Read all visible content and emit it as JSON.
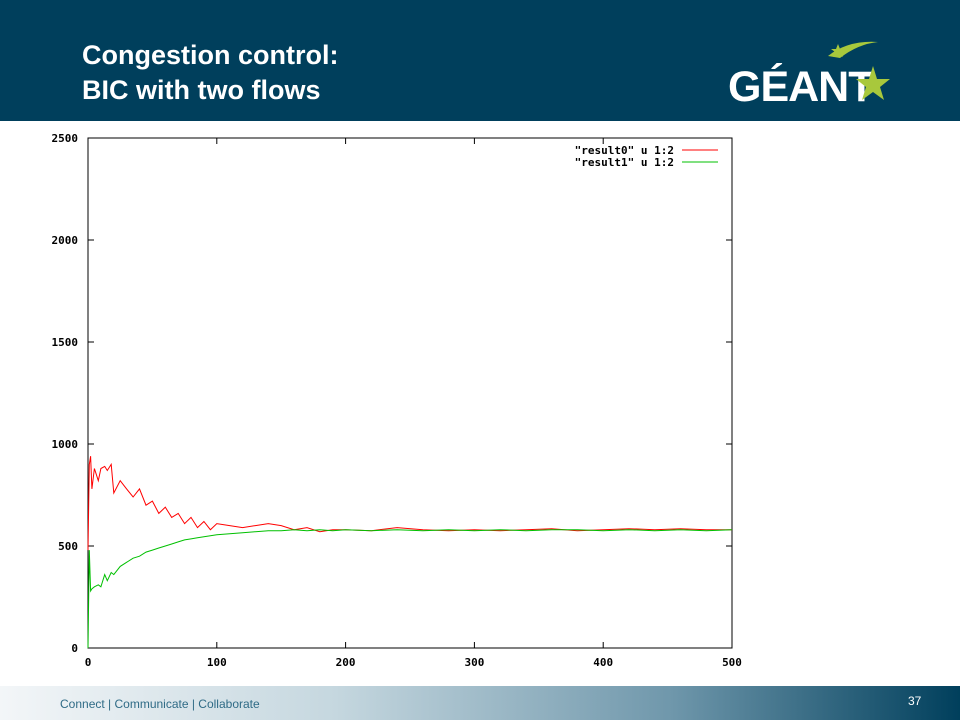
{
  "slide": {
    "title_line1": "Congestion control:",
    "title_line2": "BIC with two flows",
    "logo_text": "GÉANT",
    "footer_text": "Connect | Communicate | Collaborate",
    "page_number": "37"
  },
  "colors": {
    "header": "#003f5c",
    "logo_star": "#a8c83c",
    "series0": "#ff0000",
    "series1": "#00c000"
  },
  "chart_data": {
    "type": "line",
    "title": "",
    "xlabel": "",
    "ylabel": "",
    "xlim": [
      0,
      500
    ],
    "ylim": [
      0,
      2500
    ],
    "xticks": [
      0,
      100,
      200,
      300,
      400,
      500
    ],
    "yticks": [
      0,
      500,
      1000,
      1500,
      2000,
      2500
    ],
    "grid": false,
    "legend": "top-right",
    "series": [
      {
        "name": "\"result0\" u 1:2",
        "color": "#ff0000",
        "x": [
          0,
          1,
          2,
          3,
          5,
          8,
          10,
          13,
          15,
          18,
          20,
          25,
          30,
          35,
          40,
          45,
          50,
          55,
          60,
          65,
          70,
          75,
          80,
          85,
          90,
          95,
          100,
          110,
          120,
          130,
          140,
          150,
          160,
          170,
          180,
          190,
          200,
          220,
          240,
          260,
          280,
          300,
          320,
          340,
          360,
          380,
          400,
          420,
          440,
          460,
          480,
          500
        ],
        "y": [
          480,
          900,
          940,
          780,
          880,
          820,
          880,
          890,
          870,
          900,
          760,
          820,
          780,
          740,
          780,
          700,
          720,
          660,
          690,
          640,
          660,
          610,
          640,
          590,
          620,
          580,
          610,
          600,
          590,
          600,
          610,
          600,
          580,
          590,
          570,
          580,
          580,
          575,
          590,
          580,
          575,
          580,
          575,
          580,
          585,
          575,
          580,
          585,
          580,
          585,
          580,
          580
        ]
      },
      {
        "name": "\"result1\" u 1:2",
        "color": "#00c000",
        "x": [
          0,
          1,
          2,
          3,
          5,
          8,
          10,
          13,
          15,
          18,
          20,
          25,
          30,
          35,
          40,
          45,
          50,
          55,
          60,
          65,
          70,
          75,
          80,
          85,
          90,
          95,
          100,
          110,
          120,
          130,
          140,
          150,
          160,
          170,
          180,
          190,
          200,
          220,
          240,
          260,
          280,
          300,
          320,
          340,
          360,
          380,
          400,
          420,
          440,
          460,
          480,
          500
        ],
        "y": [
          0,
          480,
          280,
          290,
          300,
          310,
          300,
          360,
          330,
          370,
          360,
          400,
          420,
          440,
          450,
          470,
          480,
          490,
          500,
          510,
          520,
          530,
          535,
          540,
          545,
          550,
          555,
          560,
          565,
          570,
          575,
          575,
          580,
          575,
          580,
          575,
          580,
          575,
          580,
          575,
          580,
          575,
          580,
          575,
          580,
          580,
          575,
          580,
          575,
          580,
          575,
          580
        ]
      }
    ]
  }
}
